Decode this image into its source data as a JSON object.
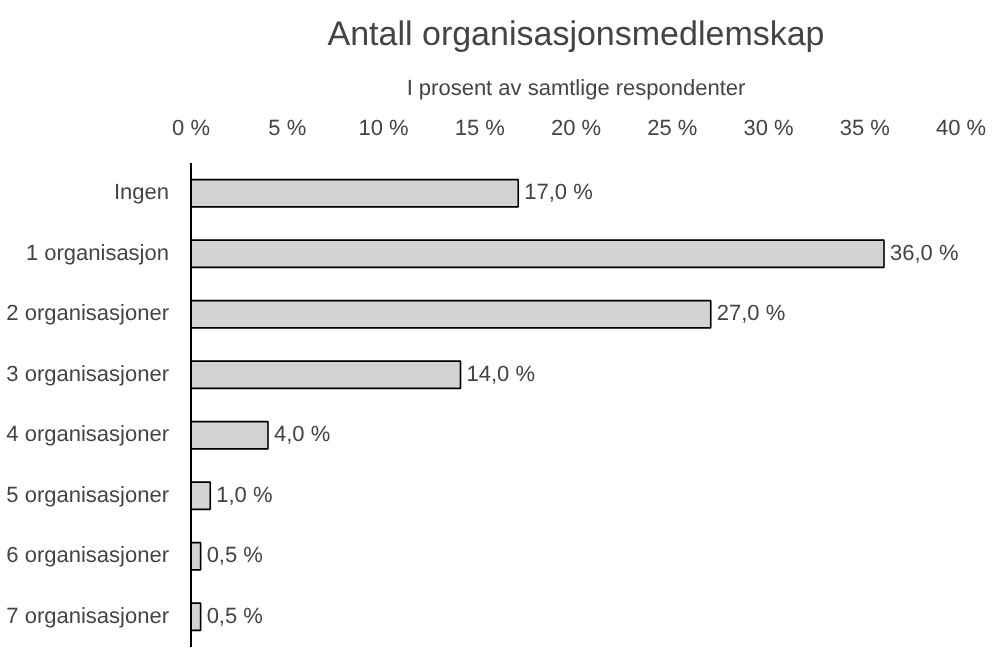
{
  "chart_data": {
    "type": "bar",
    "orientation": "horizontal",
    "title": "Antall organisasjonsmedlemskap",
    "subtitle": "I prosent av samtlige respondenter",
    "categories": [
      "Ingen",
      "1 organisasjon",
      "2 organisasjoner",
      "3 organisasjoner",
      "4 organisasjoner",
      "5 organisasjoner",
      "6 organisasjoner",
      "7 organisasjoner"
    ],
    "values": [
      17.0,
      36.0,
      27.0,
      14.0,
      4.0,
      1.0,
      0.5,
      0.5
    ],
    "value_labels": [
      "17,0 %",
      "36,0 %",
      "27,0 %",
      "14,0 %",
      "4,0 %",
      "1,0 %",
      "0,5 %",
      "0,5 %"
    ],
    "color": "#d3d3d3",
    "xlim": [
      0,
      40
    ],
    "xticks": [
      {
        "value": 0,
        "label": "0 %"
      },
      {
        "value": 5,
        "label": "5 %"
      },
      {
        "value": 10,
        "label": "10 %"
      },
      {
        "value": 15,
        "label": "15 %"
      },
      {
        "value": 20,
        "label": "20 %"
      },
      {
        "value": 25,
        "label": "25 %"
      },
      {
        "value": 30,
        "label": "30 %"
      },
      {
        "value": 35,
        "label": "35 %"
      },
      {
        "value": 40,
        "label": "40 %"
      }
    ],
    "grid": false
  }
}
